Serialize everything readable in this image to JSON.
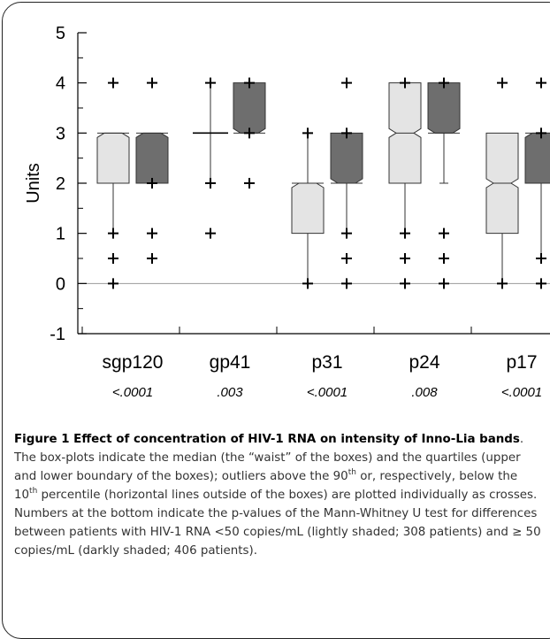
{
  "chart_data": {
    "type": "box",
    "ylabel": "Units",
    "ylim": [
      -1,
      5
    ],
    "yticks": [
      "-1",
      "0",
      "1",
      "2",
      "3",
      "4",
      "5"
    ],
    "reference_line_y": 0,
    "groups": [
      {
        "label": "sgp120",
        "pvalue": "<.0001",
        "boxes": [
          {
            "group": "low",
            "q1": 2,
            "median": 3,
            "q3": 3,
            "p10": 1,
            "p90": 3,
            "outliers": [
              4,
              1,
              0.5,
              0
            ]
          },
          {
            "group": "high",
            "q1": 2,
            "median": 3,
            "q3": 3,
            "p10": 2,
            "p90": 3,
            "outliers": [
              4,
              2,
              1,
              0.5
            ]
          }
        ]
      },
      {
        "label": "gp41",
        "pvalue": ".003",
        "boxes": [
          {
            "group": "low",
            "q1": 3,
            "median": 3,
            "q3": 3,
            "p10": 2,
            "p90": 4,
            "outliers": [
              4,
              2,
              1
            ]
          },
          {
            "group": "high",
            "q1": 3,
            "median": 3,
            "q3": 4,
            "p10": 3,
            "p90": 4,
            "outliers": [
              4,
              3,
              2
            ]
          }
        ]
      },
      {
        "label": "p31",
        "pvalue": "<.0001",
        "boxes": [
          {
            "group": "low",
            "q1": 1,
            "median": 2,
            "q3": 2,
            "p10": 0,
            "p90": 3,
            "outliers": [
              3,
              0
            ]
          },
          {
            "group": "high",
            "q1": 2,
            "median": 2,
            "q3": 3,
            "p10": 1,
            "p90": 3,
            "outliers": [
              4,
              3,
              1,
              0.5,
              0
            ]
          }
        ]
      },
      {
        "label": "p24",
        "pvalue": ".008",
        "boxes": [
          {
            "group": "low",
            "q1": 2,
            "median": 3,
            "q3": 4,
            "p10": 1,
            "p90": 4,
            "outliers": [
              4,
              1,
              0.5,
              0
            ]
          },
          {
            "group": "high",
            "q1": 3,
            "median": 3,
            "q3": 4,
            "p10": 2,
            "p90": 4,
            "outliers": [
              4,
              1,
              0.5,
              0
            ]
          }
        ]
      },
      {
        "label": "p17",
        "pvalue": "<.0001",
        "boxes": [
          {
            "group": "low",
            "q1": 1,
            "median": 2,
            "q3": 3,
            "p10": 0,
            "p90": 3,
            "outliers": [
              4,
              0
            ]
          },
          {
            "group": "high",
            "q1": 2,
            "median": 3,
            "q3": 3,
            "p10": 0.5,
            "p90": 3,
            "outliers": [
              4,
              3,
              0.5,
              0
            ]
          }
        ]
      }
    ],
    "colors": {
      "low": "#e4e4e4",
      "high": "#6e6e6e",
      "stroke": "#333333",
      "reference": "#9a9a9a"
    }
  },
  "caption": {
    "title": "Figure 1 Effect of concentration of HIV-1 RNA on intensity of Inno-Lia bands",
    "text_1": ". The box-plots indicate the median (the “waist” of the boxes) and the quartiles (upper and lower boundary of the boxes); outliers above the 90",
    "sup_1": "th",
    "text_2": " or, respectively, below the 10",
    "sup_2": "th",
    "text_3": " percentile (horizontal lines outside of the boxes) are plotted individually as crosses. Numbers at the bottom indicate the p-values of the Mann-Whitney U test for differences between patients with HIV-1 RNA <50 copies/mL (lightly shaded; 308 patients) and ≥ 50 copies/mL (darkly shaded; 406 patients)."
  }
}
